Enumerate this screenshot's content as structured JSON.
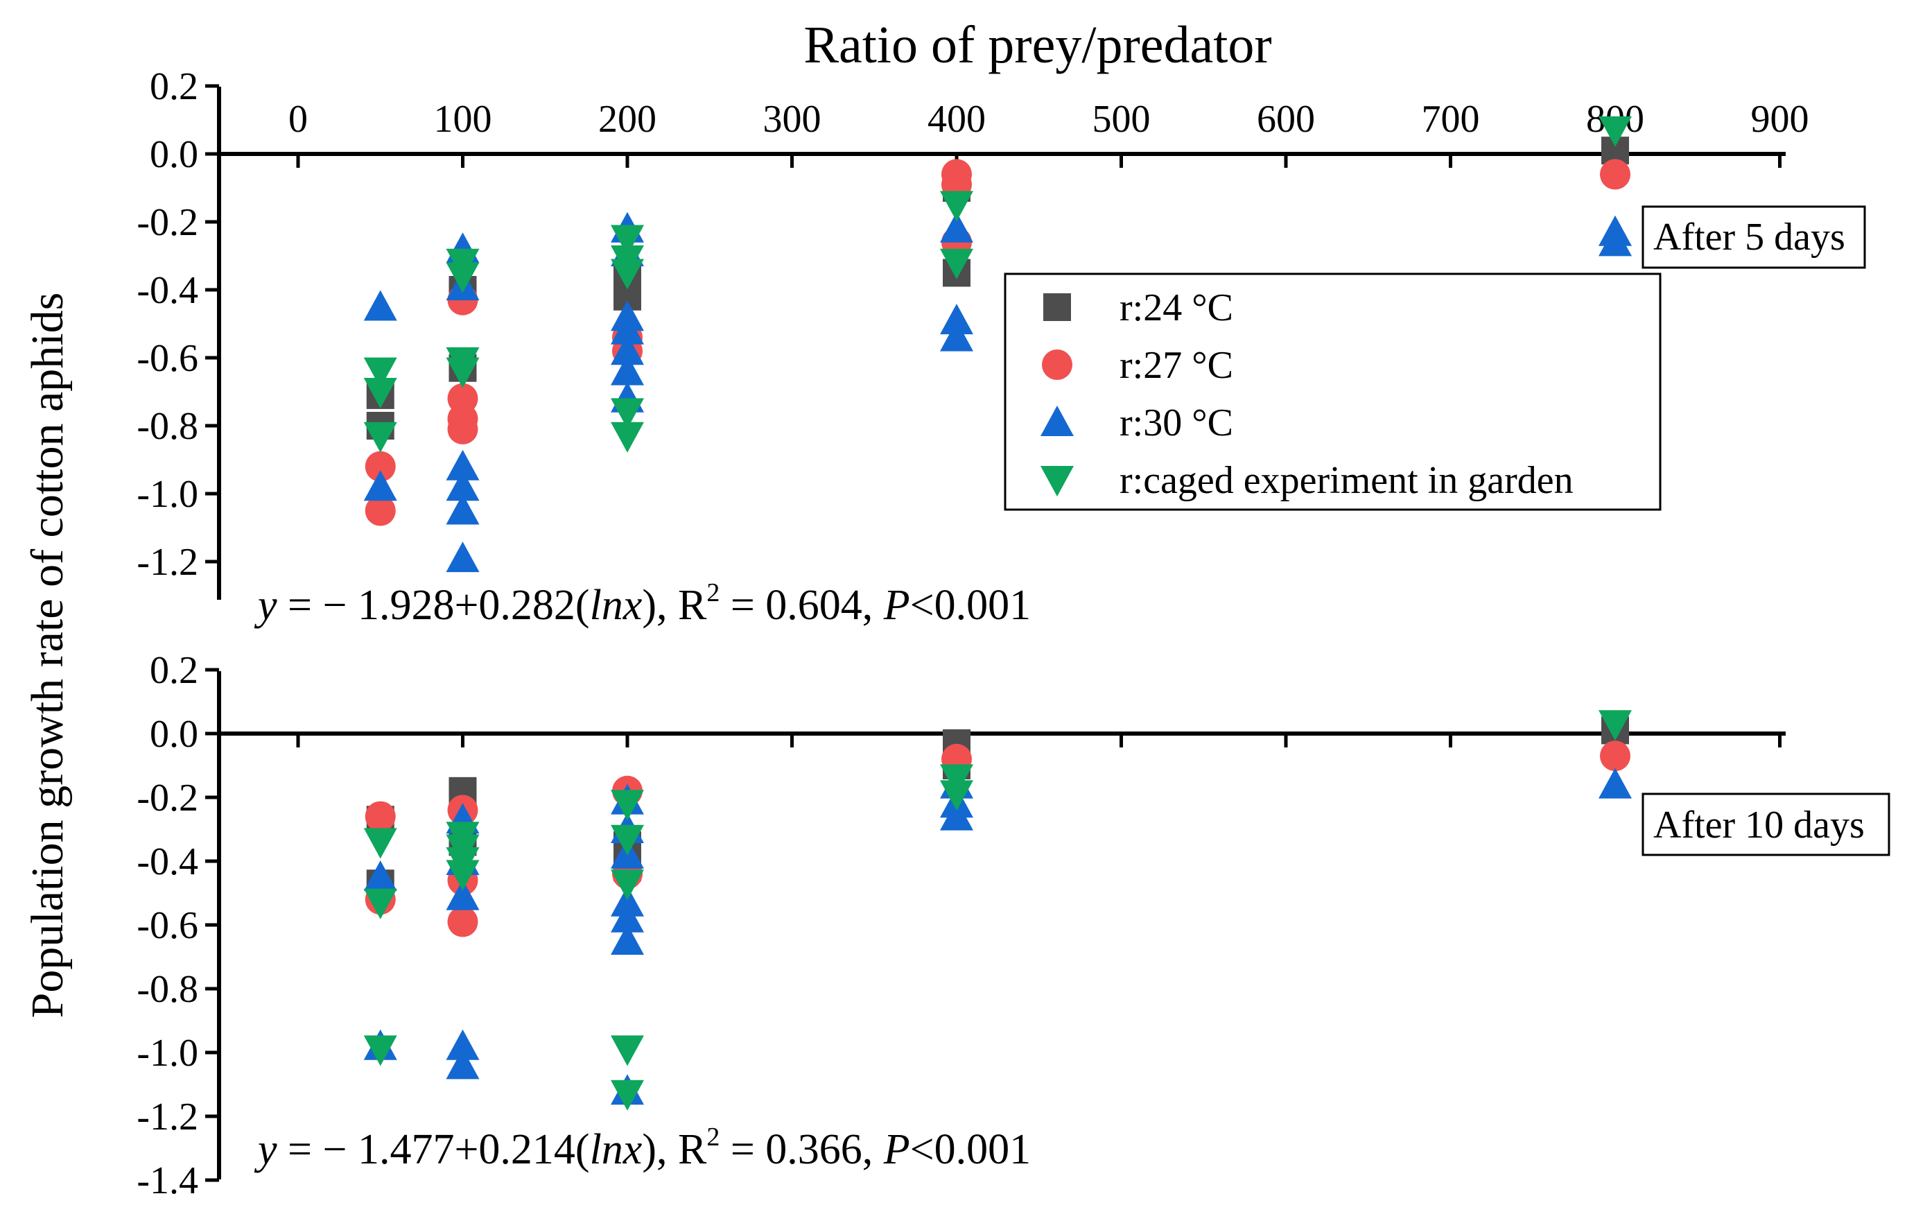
{
  "figure": {
    "ylabel": "Population growth rate of cotton aphids",
    "xlabel": "Ratio of prey/predator"
  },
  "chart_data": [
    {
      "type": "scatter",
      "panel": "top",
      "title": "Ratio of prey/predator",
      "xlabel": "Ratio of prey/predator",
      "ylabel": "Population growth rate of cotton aphids",
      "xlim": [
        -50,
        900
      ],
      "ylim": [
        -1.3,
        0.2
      ],
      "x_ticks": [
        "0",
        "100",
        "200",
        "300",
        "400",
        "500",
        "600",
        "700",
        "800",
        "900"
      ],
      "x_tick_values": [
        0,
        100,
        200,
        300,
        400,
        500,
        600,
        700,
        800,
        900
      ],
      "y_ticks": [
        "0.2",
        "0.0",
        "-0.2",
        "-0.4",
        "-0.6",
        "-0.8",
        "-1.0",
        "-1.2"
      ],
      "y_tick_values": [
        0.2,
        0.0,
        -0.2,
        -0.4,
        -0.6,
        -0.8,
        -1.0,
        -1.2
      ],
      "annotation": "After 5 days",
      "equation": {
        "y": "y",
        "rest": " = − 1.928+0.282(",
        "ln": "lnx",
        "r": "), R",
        "sup": "2",
        "tail": " = 0.604, ",
        "p": "P",
        "ptail": "<0.001"
      },
      "legend": [
        "r:24 °C",
        "r:27 °C",
        "r:30 °C",
        "r:caged experiment in garden"
      ],
      "series": [
        {
          "name": "r:24 °C",
          "marker": "square",
          "color": "#4d4d4d",
          "x": [
            50,
            50,
            100,
            100,
            200,
            200,
            400,
            400,
            800
          ],
          "y": [
            -0.71,
            -0.8,
            -0.4,
            -0.63,
            -0.37,
            -0.42,
            -0.1,
            -0.35,
            0.01
          ]
        },
        {
          "name": "r:27 °C",
          "marker": "circle",
          "color": "#f05050",
          "x": [
            50,
            50,
            100,
            100,
            100,
            100,
            200,
            200,
            400,
            400,
            400,
            800
          ],
          "y": [
            -0.92,
            -1.05,
            -0.43,
            -0.72,
            -0.78,
            -0.81,
            -0.54,
            -0.58,
            -0.06,
            -0.09,
            -0.26,
            -0.06
          ]
        },
        {
          "name": "r:30 °C",
          "marker": "triangle-up",
          "color": "#1468d2",
          "x": [
            50,
            50,
            100,
            100,
            100,
            100,
            100,
            100,
            200,
            200,
            200,
            200,
            200,
            200,
            200,
            400,
            400,
            400,
            800,
            800
          ],
          "y": [
            -0.45,
            -0.98,
            -0.28,
            -0.39,
            -0.92,
            -0.98,
            -1.05,
            -1.19,
            -0.22,
            -0.29,
            -0.48,
            -0.52,
            -0.58,
            -0.64,
            -0.72,
            -0.22,
            -0.49,
            -0.54,
            -0.23,
            -0.26
          ]
        },
        {
          "name": "r:caged experiment in garden",
          "marker": "triangle-down",
          "color": "#0da65c",
          "x": [
            50,
            50,
            50,
            100,
            100,
            100,
            100,
            200,
            200,
            200,
            200,
            200,
            400,
            400,
            800
          ],
          "y": [
            -0.64,
            -0.7,
            -0.83,
            -0.32,
            -0.36,
            -0.61,
            -0.64,
            -0.25,
            -0.31,
            -0.35,
            -0.76,
            -0.83,
            -0.15,
            -0.32,
            0.07
          ]
        }
      ]
    },
    {
      "type": "scatter",
      "panel": "bottom",
      "xlabel": "Ratio of prey/predator",
      "ylabel": "Population growth rate of cotton aphids",
      "xlim": [
        -50,
        900
      ],
      "ylim": [
        -1.4,
        0.2
      ],
      "x_tick_values": [
        0,
        100,
        200,
        300,
        400,
        500,
        600,
        700,
        800,
        900
      ],
      "y_ticks": [
        "0.2",
        "0.0",
        "-0.2",
        "-0.4",
        "-0.6",
        "-0.8",
        "-1.0",
        "-1.2",
        "-1.4"
      ],
      "y_tick_values": [
        0.2,
        0.0,
        -0.2,
        -0.4,
        -0.6,
        -0.8,
        -1.0,
        -1.2,
        -1.4
      ],
      "annotation": "After 10 days",
      "equation": {
        "y": "y",
        "rest": " = − 1.477+0.214(",
        "ln": "lnx",
        "r": "), R",
        "sup": "2",
        "tail": " = 0.366, ",
        "p": "P",
        "ptail": "<0.001"
      },
      "series": [
        {
          "name": "r:24 °C",
          "marker": "square",
          "color": "#4d4d4d",
          "x": [
            50,
            50,
            100,
            100,
            200,
            200,
            400,
            400,
            800
          ],
          "y": [
            -0.27,
            -0.47,
            -0.18,
            -0.34,
            -0.35,
            -0.42,
            -0.03,
            -0.1,
            0.01
          ]
        },
        {
          "name": "r:27 °C",
          "marker": "circle",
          "color": "#f05050",
          "x": [
            50,
            50,
            100,
            100,
            100,
            200,
            200,
            400,
            800
          ],
          "y": [
            -0.26,
            -0.52,
            -0.24,
            -0.46,
            -0.59,
            -0.18,
            -0.44,
            -0.08,
            -0.07
          ]
        },
        {
          "name": "r:30 °C",
          "marker": "triangle-up",
          "color": "#1468d2",
          "x": [
            50,
            50,
            100,
            100,
            100,
            100,
            100,
            200,
            200,
            200,
            200,
            200,
            200,
            200,
            400,
            400,
            400,
            800
          ],
          "y": [
            -0.45,
            -0.98,
            -0.27,
            -0.4,
            -0.51,
            -0.98,
            -1.04,
            -0.21,
            -0.3,
            -0.38,
            -0.53,
            -0.58,
            -0.65,
            -1.12,
            -0.16,
            -0.22,
            -0.26,
            -0.16
          ]
        },
        {
          "name": "r:caged experiment in garden",
          "marker": "triangle-down",
          "color": "#0da65c",
          "x": [
            50,
            50,
            50,
            100,
            100,
            100,
            100,
            200,
            200,
            200,
            200,
            200,
            400,
            400,
            800
          ],
          "y": [
            -0.34,
            -0.53,
            -0.99,
            -0.32,
            -0.36,
            -0.4,
            -0.44,
            -0.22,
            -0.33,
            -0.47,
            -0.99,
            -1.13,
            -0.14,
            -0.19,
            0.03
          ]
        }
      ]
    }
  ]
}
